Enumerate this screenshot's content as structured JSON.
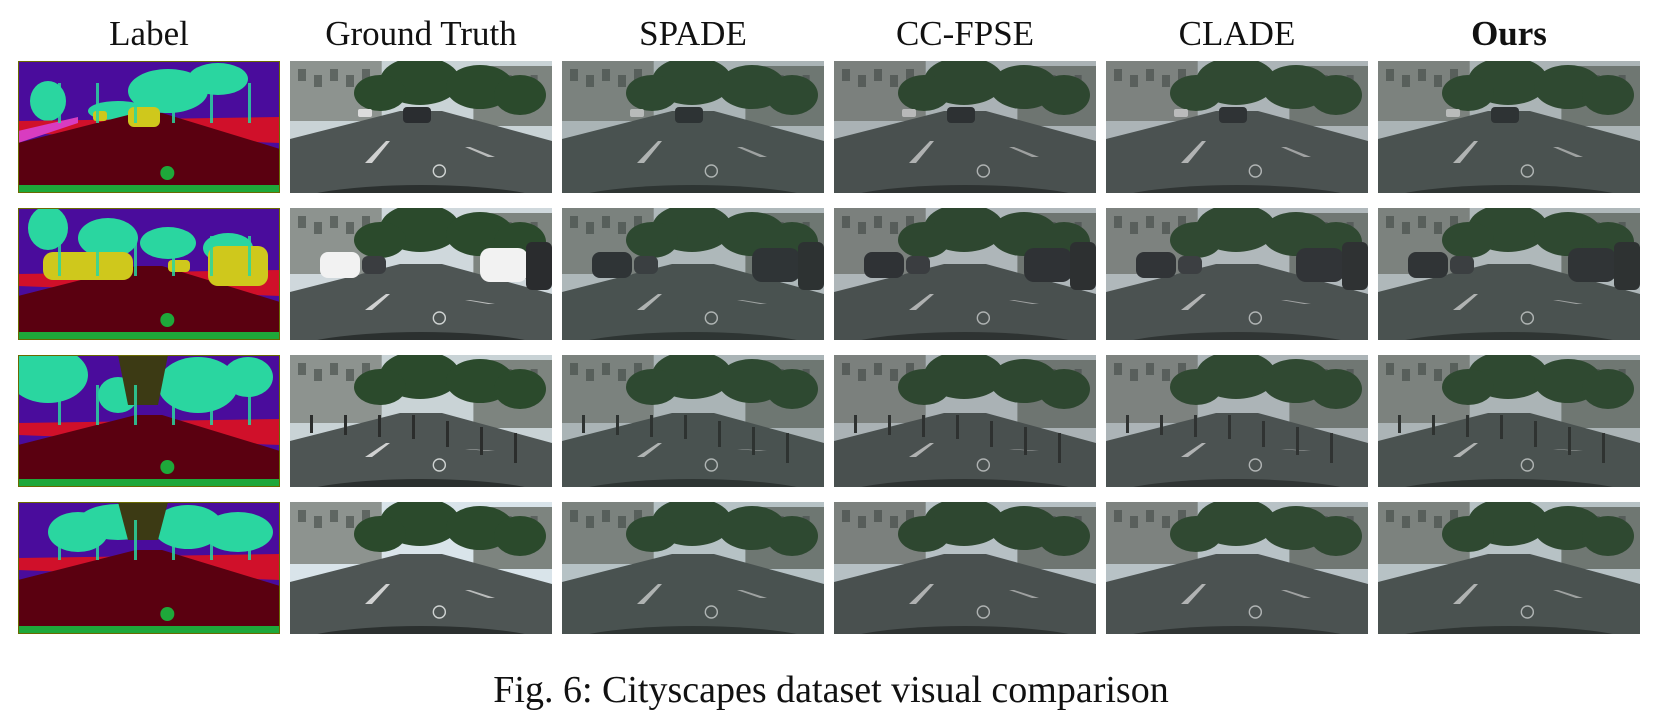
{
  "columns": [
    {
      "label": "Label",
      "bold": false
    },
    {
      "label": "Ground Truth",
      "bold": false
    },
    {
      "label": "SPADE",
      "bold": false
    },
    {
      "label": "CC-FPSE",
      "bold": false
    },
    {
      "label": "CLADE",
      "bold": false
    },
    {
      "label": "Ours",
      "bold": true
    }
  ],
  "rows": 4,
  "caption": "Fig. 6: Cityscapes dataset visual comparison",
  "colors": {
    "label_road": "#5a0010",
    "label_sky": "#4a0c9c",
    "label_vegetation": "#2ad6a0",
    "label_sidewalk": "#d0102a",
    "label_car": "#cfc81c",
    "label_ego": "#1ea83a",
    "label_pole": "#f0e08a",
    "label_building": "#3c3a14",
    "label_pink": "#d83cc0",
    "photo_road": "#4e5554",
    "photo_sky": "#d8e2e6",
    "photo_tree": "#2b4a2c",
    "photo_building": "#8d938f",
    "photo_car": "#2a2d30",
    "photo_marking": "#e8e8e8"
  }
}
